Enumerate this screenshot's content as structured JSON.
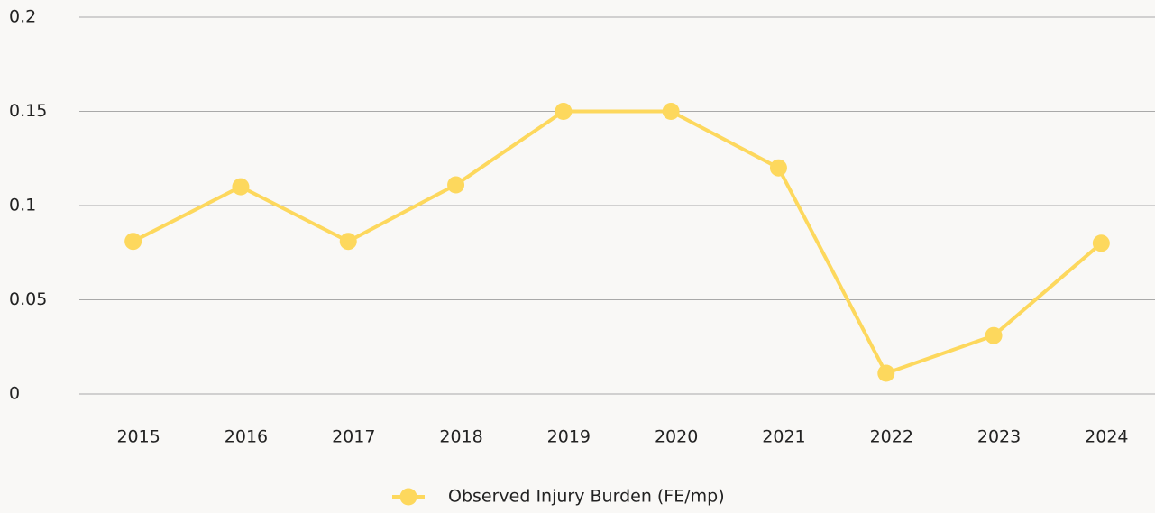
{
  "chart_data": {
    "type": "line",
    "categories": [
      "2015",
      "2016",
      "2017",
      "2018",
      "2019",
      "2020",
      "2021",
      "2022",
      "2023",
      "2024"
    ],
    "series": [
      {
        "name": "Observed Injury Burden (FE/mp)",
        "color": "#fdd85d",
        "values": [
          0.081,
          0.11,
          0.081,
          0.111,
          0.15,
          0.15,
          0.12,
          0.011,
          0.031,
          0.08
        ]
      }
    ],
    "ylim": [
      0,
      0.2
    ],
    "yticks": [
      0,
      0.05,
      0.1,
      0.15,
      0.2
    ],
    "grid": true,
    "legend": "bottom"
  }
}
